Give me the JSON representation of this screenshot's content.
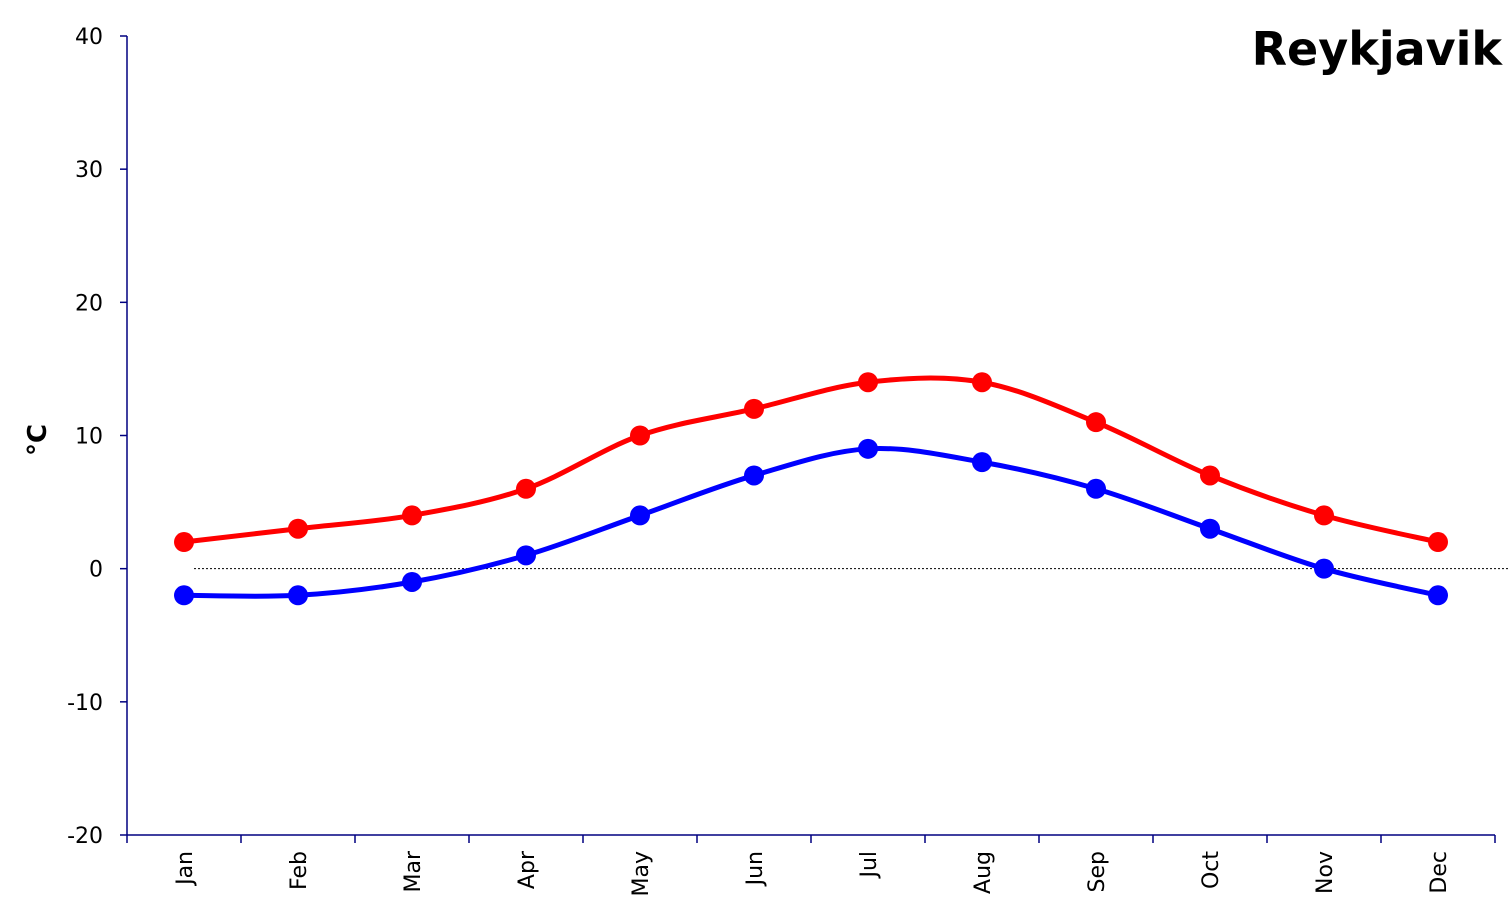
{
  "chart_data": {
    "type": "line",
    "title": "Reykjavik",
    "xlabel": "",
    "ylabel": "°C",
    "categories": [
      "Jan",
      "Feb",
      "Mar",
      "Apr",
      "May",
      "Jun",
      "Jul",
      "Aug",
      "Sep",
      "Oct",
      "Nov",
      "Dec"
    ],
    "ylim": [
      -20,
      40
    ],
    "yticks": [
      -20,
      -10,
      0,
      10,
      20,
      30,
      40
    ],
    "zero_line": true,
    "grid": false,
    "legend": "none",
    "series": [
      {
        "color": "#ff0000",
        "values": [
          2,
          3,
          4,
          6,
          10,
          12,
          14,
          14,
          11,
          7,
          4,
          2
        ]
      },
      {
        "color": "#0000ff",
        "values": [
          -2,
          -2,
          -1,
          1,
          4,
          7,
          9,
          8,
          6,
          3,
          0,
          -2
        ]
      }
    ]
  }
}
